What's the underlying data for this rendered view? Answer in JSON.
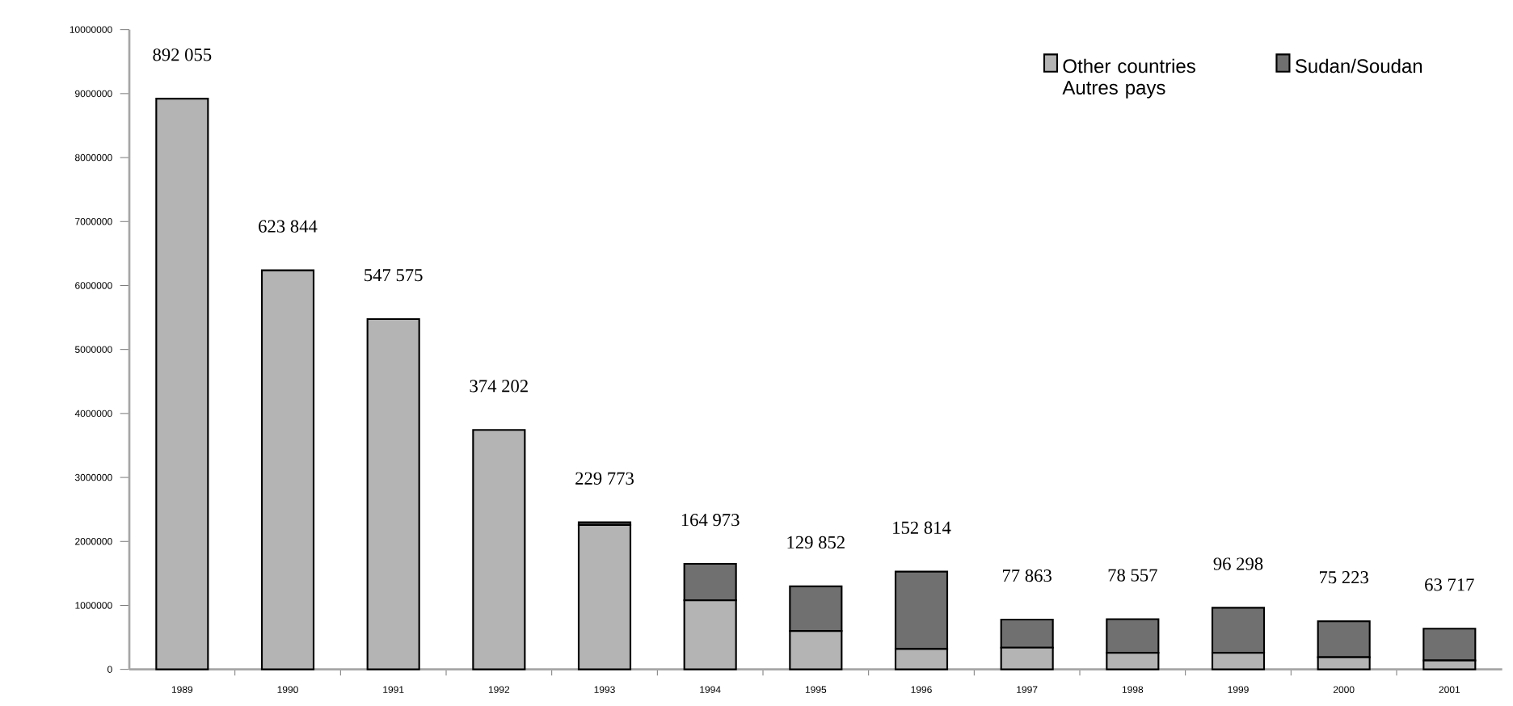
{
  "chart_data": {
    "type": "bar",
    "stacked": true,
    "categories": [
      "1989",
      "1990",
      "1991",
      "1992",
      "1993",
      "1994",
      "1995",
      "1996",
      "1997",
      "1998",
      "1999",
      "2000",
      "2001"
    ],
    "series": [
      {
        "name": "Other countries Autres pays",
        "color": "#b4b4b4",
        "values": [
          8920550,
          6238440,
          5475750,
          3742020,
          2257730,
          1080000,
          600000,
          320000,
          340000,
          260000,
          260000,
          190000,
          140000
        ]
      },
      {
        "name": "Sudan/Soudan",
        "color": "#707070",
        "values": [
          0,
          0,
          0,
          0,
          40000,
          569730,
          698520,
          1208140,
          438630,
          525570,
          702980,
          562230,
          497170
        ]
      }
    ],
    "annotations": [
      {
        "text": "892 055",
        "x": "1989",
        "y": 8920550
      },
      {
        "text": "623 844",
        "x": "1990",
        "y": 6238440
      },
      {
        "text": "547 575",
        "x": "1991",
        "y": 5475750
      },
      {
        "text": "374 202",
        "x": "1992",
        "y": 3742020
      },
      {
        "text": "229 773",
        "x": "1993",
        "y": 2297730
      },
      {
        "text": "164 973",
        "x": "1994",
        "y": 1649730
      },
      {
        "text": "129 852",
        "x": "1995",
        "y": 1298520
      },
      {
        "text": "152 814",
        "x": "1996",
        "y": 1528140
      },
      {
        "text": "77 863",
        "x": "1997",
        "y": 778630
      },
      {
        "text": "78 557",
        "x": "1998",
        "y": 785570
      },
      {
        "text": "96 298",
        "x": "1999",
        "y": 962980
      },
      {
        "text": "75 223",
        "x": "2000",
        "y": 752230
      },
      {
        "text": "63 717",
        "x": "2001",
        "y": 637170
      }
    ],
    "ylim": [
      0,
      10000000
    ],
    "yticks": [
      0,
      1000000,
      2000000,
      3000000,
      4000000,
      5000000,
      6000000,
      7000000,
      8000000,
      9000000,
      10000000
    ],
    "grid": false,
    "legend": "top right"
  }
}
